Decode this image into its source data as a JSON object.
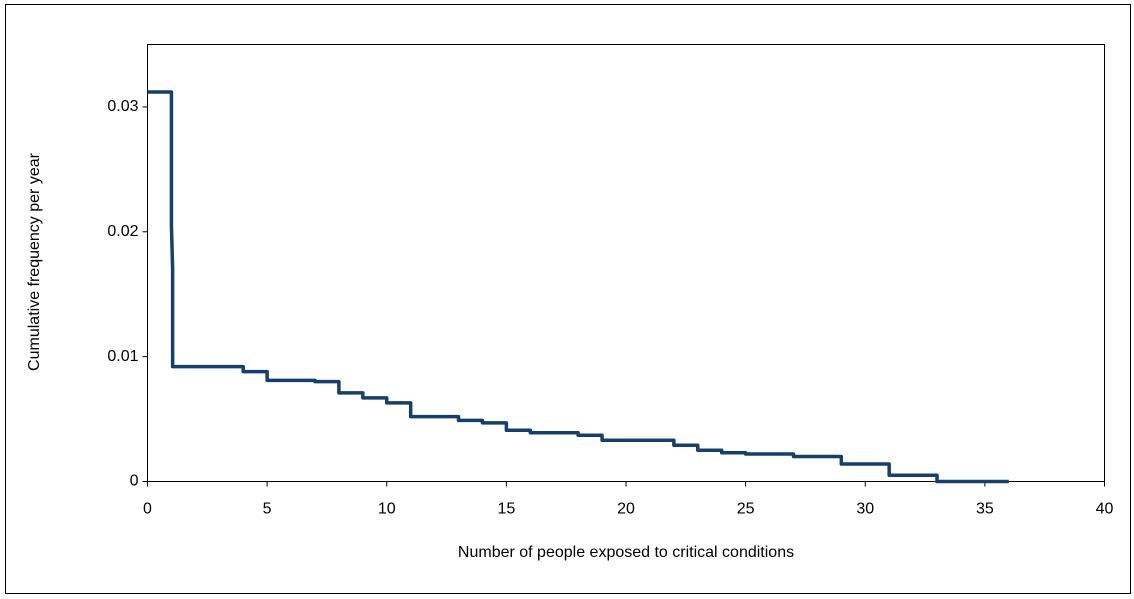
{
  "chart_data": {
    "type": "line",
    "x_label": "Number of people exposed to critical conditions",
    "y_label": "Cumulative frequency per year",
    "color": "#173f6b",
    "x": [
      0,
      1,
      1,
      1.05,
      1.05,
      4,
      4,
      5,
      5,
      7,
      7,
      8,
      8,
      9,
      9,
      10,
      10,
      11,
      11,
      13,
      13,
      14,
      14,
      15,
      15,
      16,
      16,
      18,
      18,
      19,
      19,
      22,
      22,
      23,
      23,
      24,
      24,
      25,
      25,
      27,
      27,
      29,
      29,
      31,
      31,
      33,
      33,
      36
    ],
    "values": [
      0.0312,
      0.0312,
      0.0205,
      0.017,
      0.0092,
      0.0092,
      0.0088,
      0.0088,
      0.0081,
      0.0081,
      0.008,
      0.008,
      0.0071,
      0.0071,
      0.0067,
      0.0067,
      0.0063,
      0.0063,
      0.0052,
      0.0052,
      0.0049,
      0.0049,
      0.0047,
      0.0047,
      0.0041,
      0.0041,
      0.0039,
      0.0039,
      0.0037,
      0.0037,
      0.0033,
      0.0033,
      0.0029,
      0.0029,
      0.0025,
      0.0025,
      0.0023,
      0.0023,
      0.0022,
      0.0022,
      0.002,
      0.002,
      0.0014,
      0.0014,
      0.0005,
      0.0005,
      0,
      0
    ],
    "xlim": [
      0,
      40
    ],
    "xticks": [
      0,
      5,
      10,
      15,
      20,
      25,
      30,
      35,
      40
    ],
    "ylim": [
      0,
      0.035
    ],
    "yticks": [
      0,
      0.01,
      0.02,
      0.03
    ]
  }
}
